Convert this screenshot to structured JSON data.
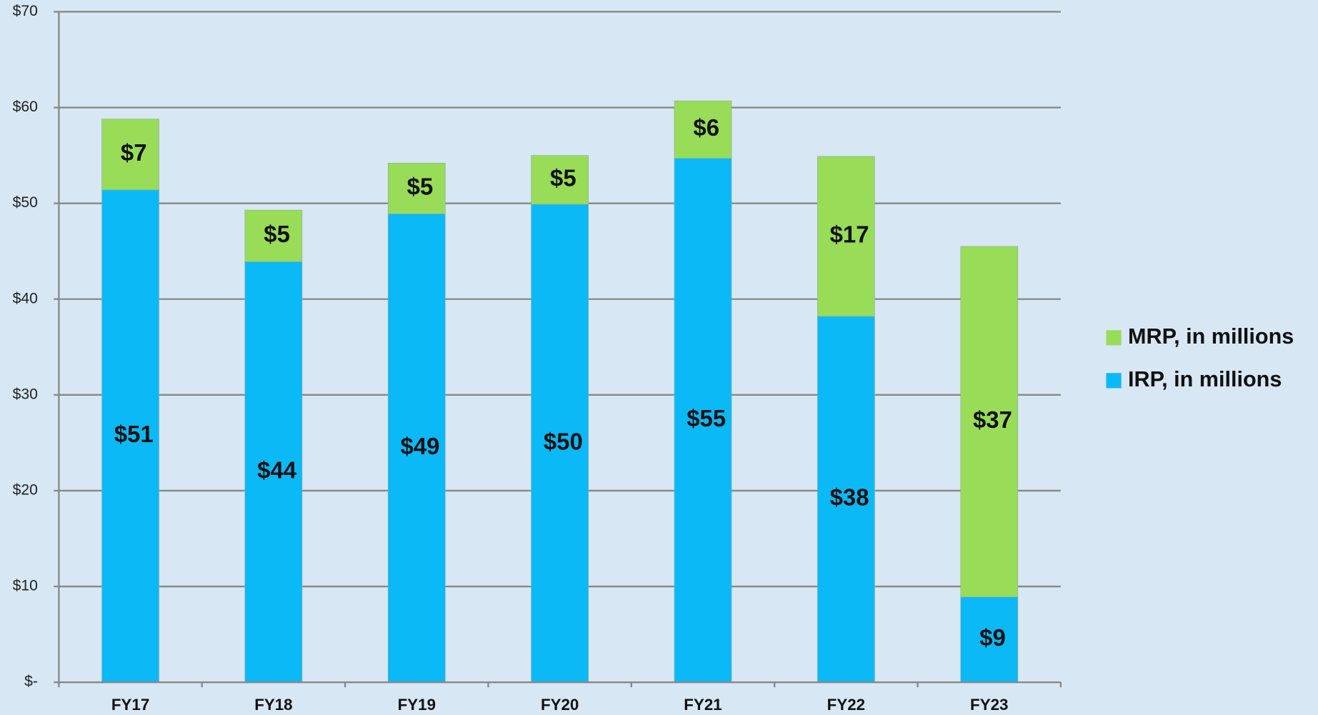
{
  "chart_data": {
    "type": "stacked-bar",
    "categories": [
      "FY17",
      "FY18",
      "FY19",
      "FY20",
      "FY21",
      "FY22",
      "FY23"
    ],
    "series": [
      {
        "name": "IRP, in millions",
        "color": "#0bb9f6",
        "values": [
          51.4,
          43.9,
          48.9,
          49.9,
          54.7,
          38.2,
          8.9
        ],
        "value_labels": [
          "$51",
          "$44",
          "$49",
          "$50",
          "$55",
          "$38",
          "$9"
        ]
      },
      {
        "name": "MRP, in millions",
        "color": "#99dc58",
        "values": [
          7.4,
          5.4,
          5.3,
          5.1,
          6.0,
          16.7,
          36.6
        ],
        "value_labels": [
          "$7",
          "$5",
          "$5",
          "$5",
          "$6",
          "$17",
          "$37"
        ]
      }
    ],
    "ylim": [
      0,
      70
    ],
    "yticks": [
      {
        "value": 0,
        "label": "$-"
      },
      {
        "value": 10,
        "label": "$10"
      },
      {
        "value": 20,
        "label": "$20"
      },
      {
        "value": 30,
        "label": "$30"
      },
      {
        "value": 40,
        "label": "$40"
      },
      {
        "value": 50,
        "label": "$50"
      },
      {
        "value": 60,
        "label": "$60"
      },
      {
        "value": 70,
        "label": "$70"
      }
    ],
    "grid": true,
    "legend": "right"
  }
}
